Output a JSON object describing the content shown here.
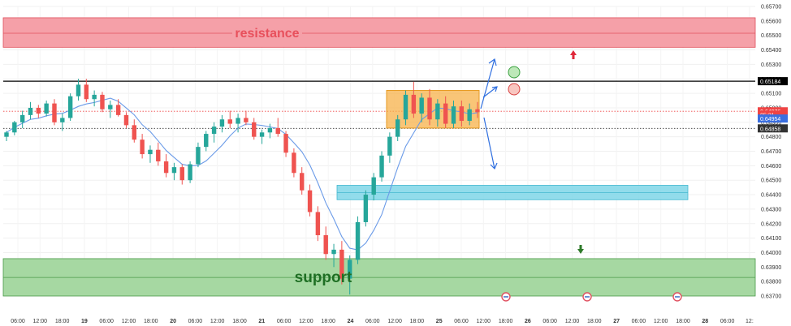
{
  "chart_data": {
    "type": "candlestick",
    "y_axis": {
      "range": [
        0.637,
        0.657
      ],
      "ticks": [
        "0.65700",
        "0.65600",
        "0.65500",
        "0.65400",
        "0.65300",
        "0.65200",
        "0.65100",
        "0.65000",
        "0.64900",
        "0.64800",
        "0.64700",
        "0.64600",
        "0.64500",
        "0.64400",
        "0.64300",
        "0.64200",
        "0.64100",
        "0.64000",
        "0.63900",
        "0.63800",
        "0.63700"
      ]
    },
    "x_axis": {
      "ticks": [
        "06:00",
        "12:00",
        "18:00",
        "19",
        "06:00",
        "12:00",
        "18:00",
        "20",
        "06:00",
        "12:00",
        "18:00",
        "21",
        "06:00",
        "12:00",
        "18:00",
        "24",
        "06:00",
        "12:00",
        "18:00",
        "25",
        "06:00",
        "12:00",
        "18:00",
        "26",
        "06:00",
        "12:00",
        "18:00",
        "27",
        "06:00",
        "12:00",
        "18:00",
        "28",
        "06:00",
        "12:"
      ],
      "bold_ticks": [
        "19",
        "20",
        "21",
        "24",
        "25",
        "26",
        "27",
        "28"
      ]
    },
    "price_labels": [
      {
        "value": "0.65184",
        "price": 0.65184,
        "bg": "#000000",
        "fg": "#ffffff"
      },
      {
        "value": "0.64976",
        "price": 0.64976,
        "bg": "#ef4444",
        "fg": "#ffffff"
      },
      {
        "value": "05:31",
        "price": 0.64953,
        "bg": "#ef4444",
        "fg": "#ffffff"
      },
      {
        "value": "0.64954",
        "price": 0.64926,
        "bg": "#3b6fe0",
        "fg": "#ffffff"
      },
      {
        "value": "0.64858",
        "price": 0.64858,
        "bg": "#333333",
        "fg": "#ffffff"
      }
    ],
    "zones": [
      {
        "name": "resistance",
        "label": "resistance",
        "from": 0.65418,
        "to": 0.65622,
        "mid": 0.65515,
        "fill": "#f5a0a8",
        "line": "#e0505c",
        "label_color": "#e8505c"
      },
      {
        "name": "support",
        "label": "support",
        "from": 0.637,
        "to": 0.63958,
        "mid": 0.63828,
        "fill": "#a6d8a2",
        "line": "#4a9a48",
        "label_color": "#1f6f24"
      }
    ],
    "horizontal_lines": [
      {
        "price": 0.65184,
        "color": "#000000",
        "style": "solid"
      },
      {
        "price": 0.64858,
        "color": "#333333",
        "style": "dotted"
      },
      {
        "price": 0.64976,
        "color": "#ef4444",
        "style": "dotted"
      }
    ],
    "colors": {
      "up": "#26a69a",
      "down": "#ef5350",
      "ma": "#6b9be8",
      "accent_orange": "#f7a833",
      "accent_cyan": "#7fd6e8"
    },
    "ohlc_approx": [
      [
        0.648,
        0.6484,
        0.6477,
        0.6483
      ],
      [
        0.6483,
        0.6491,
        0.6481,
        0.649
      ],
      [
        0.649,
        0.6498,
        0.6486,
        0.6495
      ],
      [
        0.6495,
        0.6504,
        0.6492,
        0.65
      ],
      [
        0.65,
        0.6502,
        0.6493,
        0.6496
      ],
      [
        0.6496,
        0.6505,
        0.6494,
        0.6503
      ],
      [
        0.6503,
        0.6506,
        0.6488,
        0.649
      ],
      [
        0.649,
        0.6496,
        0.6484,
        0.6493
      ],
      [
        0.6493,
        0.651,
        0.6491,
        0.6508
      ],
      [
        0.6508,
        0.652,
        0.6505,
        0.6516
      ],
      [
        0.6516,
        0.652,
        0.6504,
        0.6506
      ],
      [
        0.6506,
        0.6512,
        0.6501,
        0.6509
      ],
      [
        0.6509,
        0.6511,
        0.6497,
        0.6499
      ],
      [
        0.6499,
        0.6505,
        0.6493,
        0.6502
      ],
      [
        0.6502,
        0.6506,
        0.6494,
        0.6495
      ],
      [
        0.6495,
        0.6497,
        0.6486,
        0.6488
      ],
      [
        0.6488,
        0.6492,
        0.6476,
        0.6478
      ],
      [
        0.6478,
        0.6482,
        0.6465,
        0.6468
      ],
      [
        0.6468,
        0.6474,
        0.6462,
        0.6471
      ],
      [
        0.6471,
        0.6476,
        0.646,
        0.6463
      ],
      [
        0.6463,
        0.6468,
        0.6452,
        0.6455
      ],
      [
        0.6455,
        0.6462,
        0.645,
        0.6459
      ],
      [
        0.6459,
        0.6461,
        0.6447,
        0.645
      ],
      [
        0.645,
        0.6463,
        0.6448,
        0.6461
      ],
      [
        0.6461,
        0.6476,
        0.6459,
        0.6473
      ],
      [
        0.6473,
        0.6484,
        0.647,
        0.6482
      ],
      [
        0.6482,
        0.649,
        0.6476,
        0.6487
      ],
      [
        0.6487,
        0.6495,
        0.6483,
        0.6492
      ],
      [
        0.6492,
        0.6498,
        0.6486,
        0.6489
      ],
      [
        0.6489,
        0.6496,
        0.6483,
        0.6493
      ],
      [
        0.6493,
        0.6498,
        0.6488,
        0.649
      ],
      [
        0.649,
        0.6493,
        0.6478,
        0.648
      ],
      [
        0.648,
        0.6485,
        0.6475,
        0.6483
      ],
      [
        0.6483,
        0.6489,
        0.6479,
        0.6486
      ],
      [
        0.6486,
        0.6493,
        0.648,
        0.6482
      ],
      [
        0.6482,
        0.6484,
        0.6466,
        0.6469
      ],
      [
        0.6469,
        0.6472,
        0.6452,
        0.6455
      ],
      [
        0.6455,
        0.6459,
        0.644,
        0.6443
      ],
      [
        0.6443,
        0.6447,
        0.6425,
        0.6428
      ],
      [
        0.6428,
        0.6432,
        0.6408,
        0.6412
      ],
      [
        0.6412,
        0.6418,
        0.6395,
        0.6399
      ],
      [
        0.6399,
        0.6406,
        0.639,
        0.6402
      ],
      [
        0.6402,
        0.6408,
        0.6378,
        0.6382
      ],
      [
        0.6382,
        0.6398,
        0.6371,
        0.6395
      ],
      [
        0.6395,
        0.6425,
        0.6392,
        0.6421
      ],
      [
        0.6421,
        0.6443,
        0.6418,
        0.644
      ],
      [
        0.644,
        0.6455,
        0.6436,
        0.6452
      ],
      [
        0.6452,
        0.647,
        0.6449,
        0.6467
      ],
      [
        0.6467,
        0.6483,
        0.6462,
        0.648
      ],
      [
        0.648,
        0.6495,
        0.6477,
        0.6492
      ],
      [
        0.6492,
        0.6512,
        0.6488,
        0.6509
      ],
      [
        0.6509,
        0.6518,
        0.6493,
        0.6496
      ],
      [
        0.6496,
        0.651,
        0.649,
        0.6507
      ],
      [
        0.6507,
        0.6513,
        0.6488,
        0.6492
      ],
      [
        0.6492,
        0.6506,
        0.6487,
        0.6503
      ],
      [
        0.6503,
        0.6508,
        0.6486,
        0.6489
      ],
      [
        0.6489,
        0.6505,
        0.6486,
        0.6501
      ],
      [
        0.6501,
        0.6505,
        0.6487,
        0.6491
      ],
      [
        0.6491,
        0.6503,
        0.6488,
        0.6499
      ],
      [
        0.6499,
        0.6504,
        0.6493,
        0.6497
      ]
    ]
  }
}
